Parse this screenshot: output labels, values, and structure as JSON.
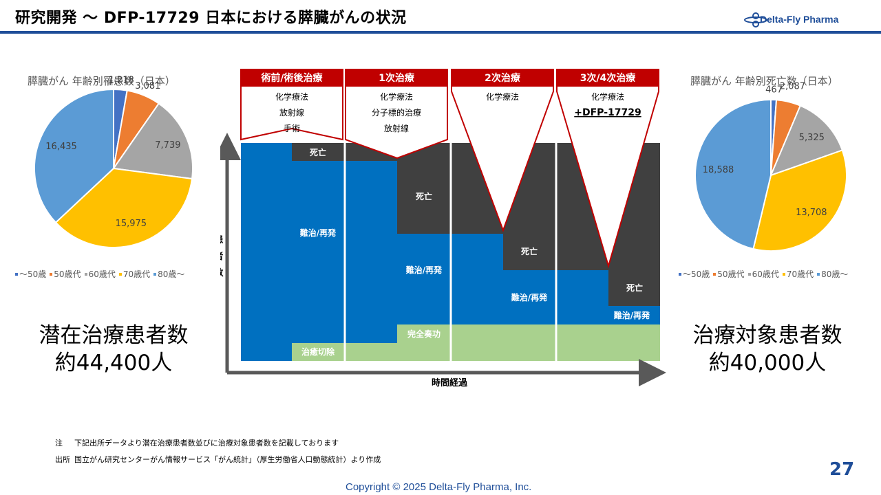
{
  "header": {
    "title": "研究開発 〜 DFP-17729 日本における膵臓がんの状況",
    "logo_text": "Delta-Fly Pharma"
  },
  "chart_data": [
    {
      "type": "pie",
      "title": "膵臓がん 年齢別罹患数（日本）",
      "categories": [
        "～50歳",
        "50歳代",
        "60歳代",
        "70歳代",
        "80歳～"
      ],
      "values": [
        1218,
        3081,
        7739,
        15975,
        16435
      ],
      "value_labels": [
        "1,218",
        "3,081",
        "7,739",
        "15,975",
        "16,435"
      ],
      "colors": [
        "#4472c4",
        "#ed7d31",
        "#a5a5a5",
        "#ffc000",
        "#5b9bd5"
      ],
      "legend_position": "bottom"
    },
    {
      "type": "pie",
      "title": "膵臓がん 年齢別死亡数（日本）",
      "categories": [
        "～50歳",
        "50歳代",
        "60歳代",
        "70歳代",
        "80歳～"
      ],
      "values": [
        467,
        2087,
        5325,
        13708,
        18588
      ],
      "value_labels": [
        "467",
        "2,087",
        "5,325",
        "13,708",
        "18,588"
      ],
      "colors": [
        "#4472c4",
        "#ed7d31",
        "#a5a5a5",
        "#ffc000",
        "#5b9bd5"
      ],
      "legend_position": "bottom"
    }
  ],
  "left_summary": {
    "line1": "潜在治療患者数",
    "line2": "約44,400人"
  },
  "right_summary": {
    "line1": "治療対象患者数",
    "line2": "約40,000人"
  },
  "flow": {
    "ylabel": "患者数",
    "xlabel": "時間経過",
    "stages": [
      {
        "header": "術前/術後治療",
        "items": [
          "化学療法",
          "放射線",
          "手術"
        ]
      },
      {
        "header": "1次治療",
        "items": [
          "化学療法",
          "分子標的治療",
          "放射線"
        ]
      },
      {
        "header": "2次治療",
        "items": [
          "化学療法"
        ]
      },
      {
        "header": "3次/4次治療",
        "items": [
          "化学療法",
          "+DFP-17729"
        ]
      }
    ],
    "labels": {
      "death": "死亡",
      "refractory": "難治/再発",
      "cure": "治癒切除",
      "complete_response": "完全奏功"
    },
    "colors": {
      "header": "#c00000",
      "blue": "#0070c0",
      "dark": "#404040",
      "green": "#a9d18e",
      "axis": "#595959"
    }
  },
  "notes": {
    "note_label": "注",
    "note_text": "下記出所データより潜在治療患者数並びに治療対象患者数を記載しております",
    "source_label": "出所",
    "source_text": "国立がん研究センターがん情報サービス「がん統計」（厚生労働省人口動態統計）より作成"
  },
  "footer": {
    "page": "27",
    "copyright": "Copyright © 2025  Delta-Fly Pharma, Inc."
  }
}
